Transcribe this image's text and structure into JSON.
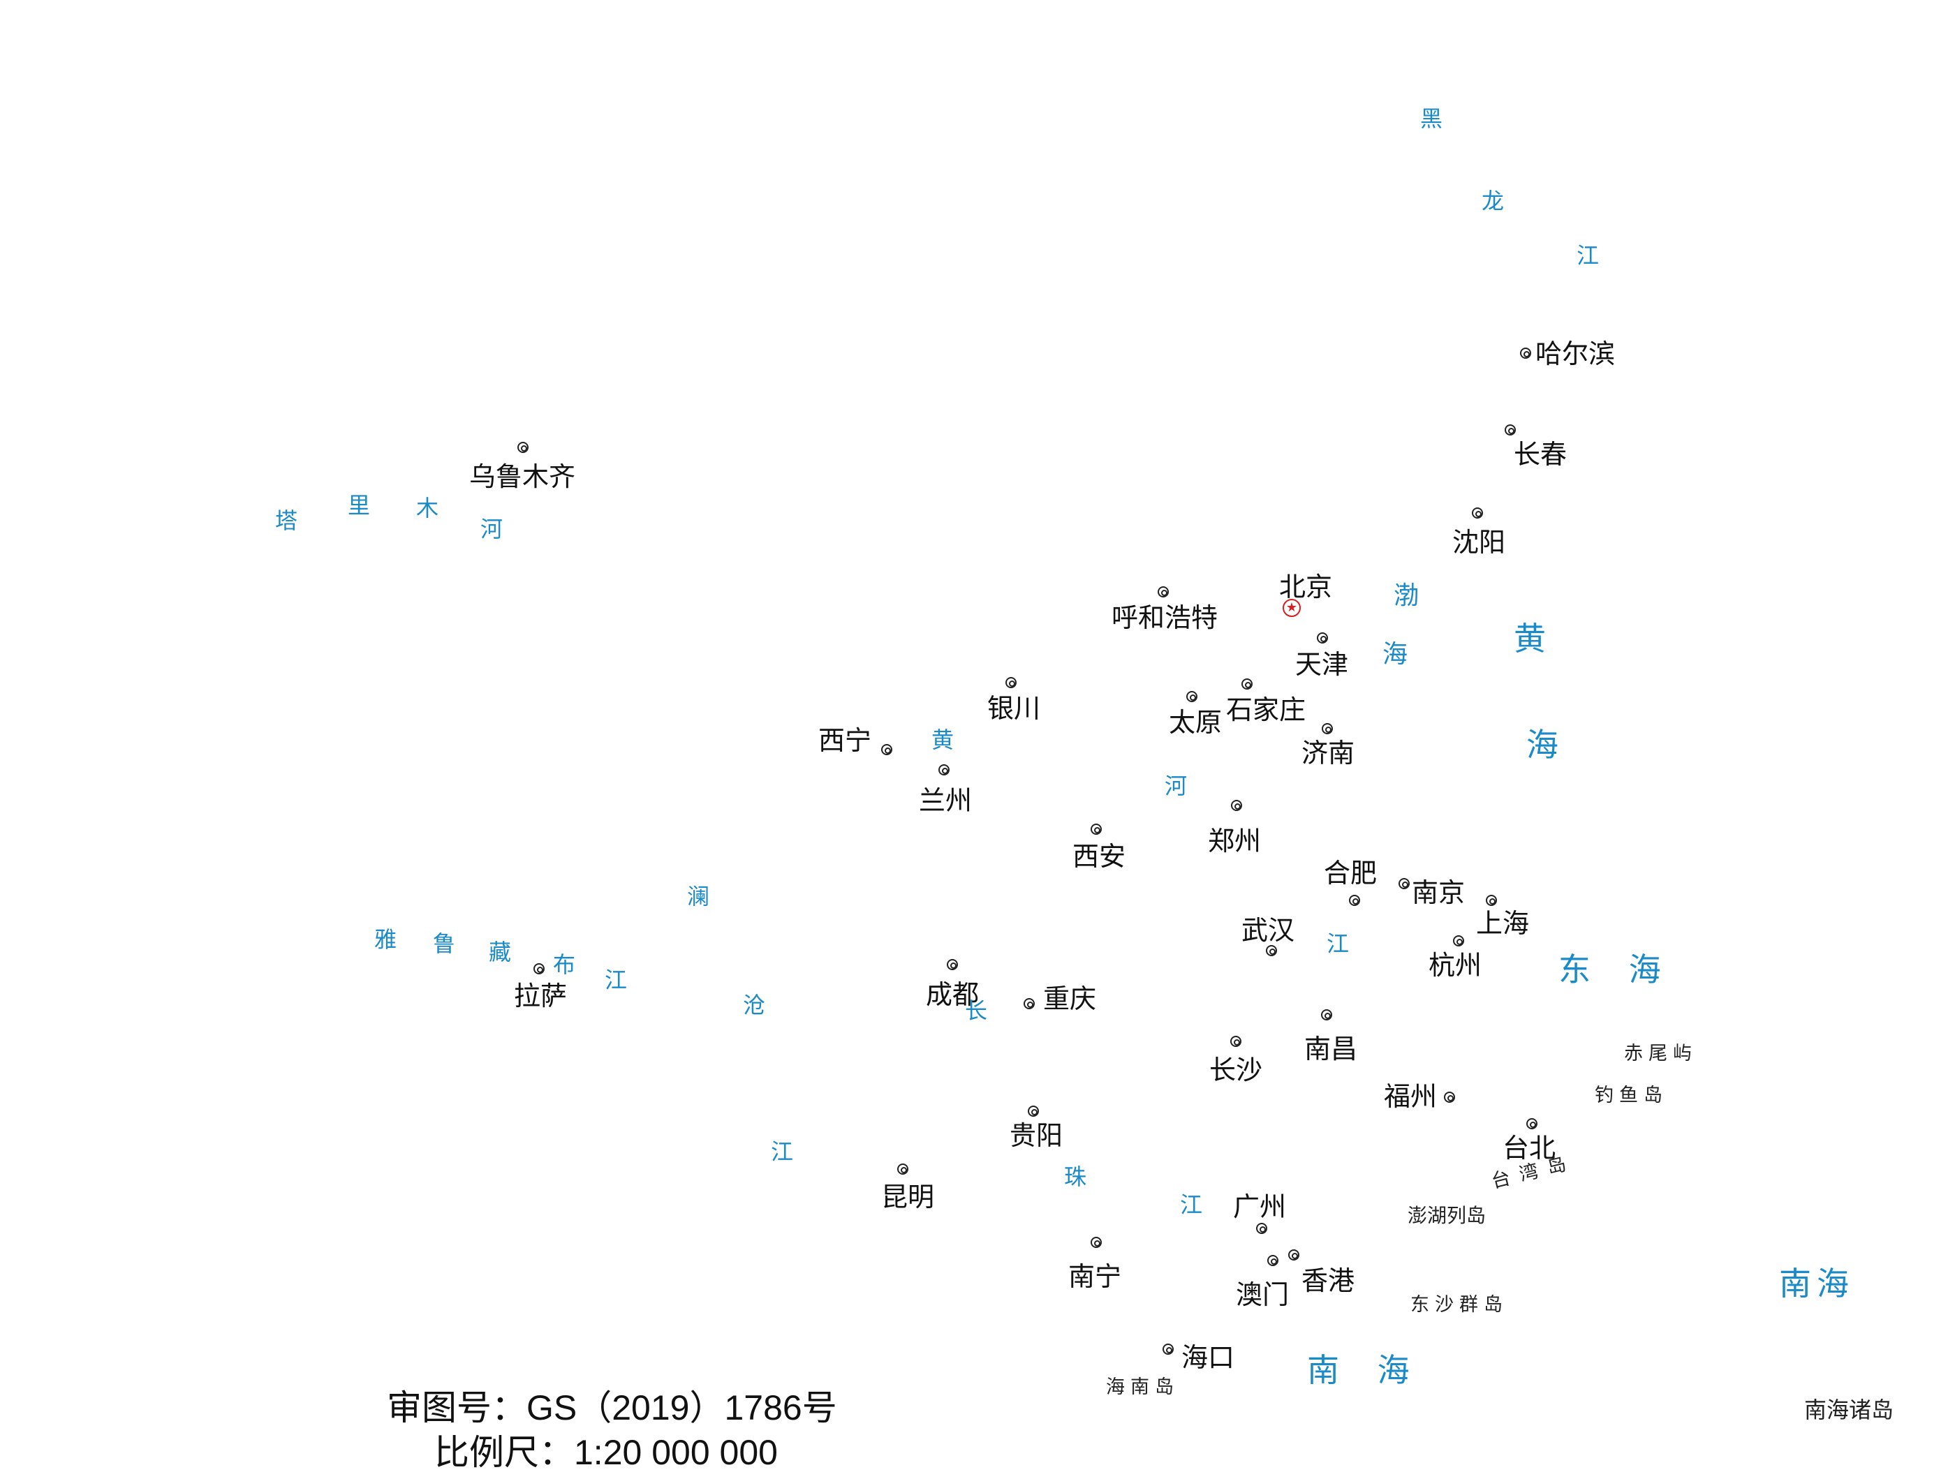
{
  "colors": {
    "river": "#1a8ac8",
    "sea": "#1a8ac8",
    "text": "#111111",
    "capital": "#d81e1e"
  },
  "capital_icon": "star-in-circle-icon",
  "capital": {
    "name": "北京"
  },
  "cities": [
    {
      "id": "haerbin",
      "name": "哈尔滨"
    },
    {
      "id": "changchun",
      "name": "长春"
    },
    {
      "id": "shenyang",
      "name": "沈阳"
    },
    {
      "id": "wulumuqi",
      "name": "乌鲁木齐"
    },
    {
      "id": "huhehaote",
      "name": "呼和浩特"
    },
    {
      "id": "tianjin",
      "name": "天津"
    },
    {
      "id": "yinchuan",
      "name": "银川"
    },
    {
      "id": "taiyuan",
      "name": "太原"
    },
    {
      "id": "shijiazhuang",
      "name": "石家庄"
    },
    {
      "id": "jinan",
      "name": "济南"
    },
    {
      "id": "xining",
      "name": "西宁"
    },
    {
      "id": "lanzhou",
      "name": "兰州"
    },
    {
      "id": "zhengzhou",
      "name": "郑州"
    },
    {
      "id": "xian",
      "name": "西安"
    },
    {
      "id": "hefei",
      "name": "合肥"
    },
    {
      "id": "nanjing",
      "name": "南京"
    },
    {
      "id": "shanghai",
      "name": "上海"
    },
    {
      "id": "wuhan",
      "name": "武汉"
    },
    {
      "id": "hangzhou",
      "name": "杭州"
    },
    {
      "id": "lasa",
      "name": "拉萨"
    },
    {
      "id": "chengdu",
      "name": "成都"
    },
    {
      "id": "chongqing",
      "name": "重庆"
    },
    {
      "id": "nanchang",
      "name": "南昌"
    },
    {
      "id": "changsha",
      "name": "长沙"
    },
    {
      "id": "fuzhou",
      "name": "福州"
    },
    {
      "id": "taibei",
      "name": "台北"
    },
    {
      "id": "guiyang",
      "name": "贵阳"
    },
    {
      "id": "kunming",
      "name": "昆明"
    },
    {
      "id": "guangzhou",
      "name": "广州"
    },
    {
      "id": "nanning",
      "name": "南宁"
    },
    {
      "id": "aomen",
      "name": "澳门"
    },
    {
      "id": "xianggang",
      "name": "香港"
    },
    {
      "id": "haikou",
      "name": "海口"
    }
  ],
  "rivers": [
    {
      "id": "heilongjiang",
      "chars": [
        "黑",
        "龙",
        "江"
      ]
    },
    {
      "id": "talimuhe",
      "chars": [
        "塔",
        "里",
        "木",
        "河"
      ]
    },
    {
      "id": "huanghe",
      "chars": [
        "黄",
        "河"
      ]
    },
    {
      "id": "yarlung",
      "chars": [
        "雅",
        "鲁",
        "藏",
        "布",
        "江"
      ]
    },
    {
      "id": "lancang",
      "chars": [
        "澜",
        "沧",
        "江"
      ]
    },
    {
      "id": "changjiang",
      "chars": [
        "长",
        "江"
      ]
    },
    {
      "id": "zhujiang",
      "chars": [
        "珠",
        "江"
      ]
    }
  ],
  "seas": [
    {
      "id": "bohai",
      "chars": [
        "渤",
        "海"
      ]
    },
    {
      "id": "huanghai",
      "chars": [
        "黄",
        "海"
      ]
    },
    {
      "id": "donghai",
      "text": "东 海"
    },
    {
      "id": "nanhai",
      "text": "南 海"
    },
    {
      "id": "nanhai-inset",
      "text": "南海"
    }
  ],
  "islands": {
    "chiweiyu": "赤尾屿",
    "diaoyudao": "钓鱼岛",
    "taiwandao": "台湾岛",
    "penghu": "澎湖列岛",
    "dongsha": "东沙群岛",
    "hainandao": "海南岛",
    "nanhaizhudao": "南海诸岛"
  },
  "footer": {
    "review_number": "审图号：GS（2019）1786号",
    "scale": "比例尺：1:20 000 000"
  }
}
